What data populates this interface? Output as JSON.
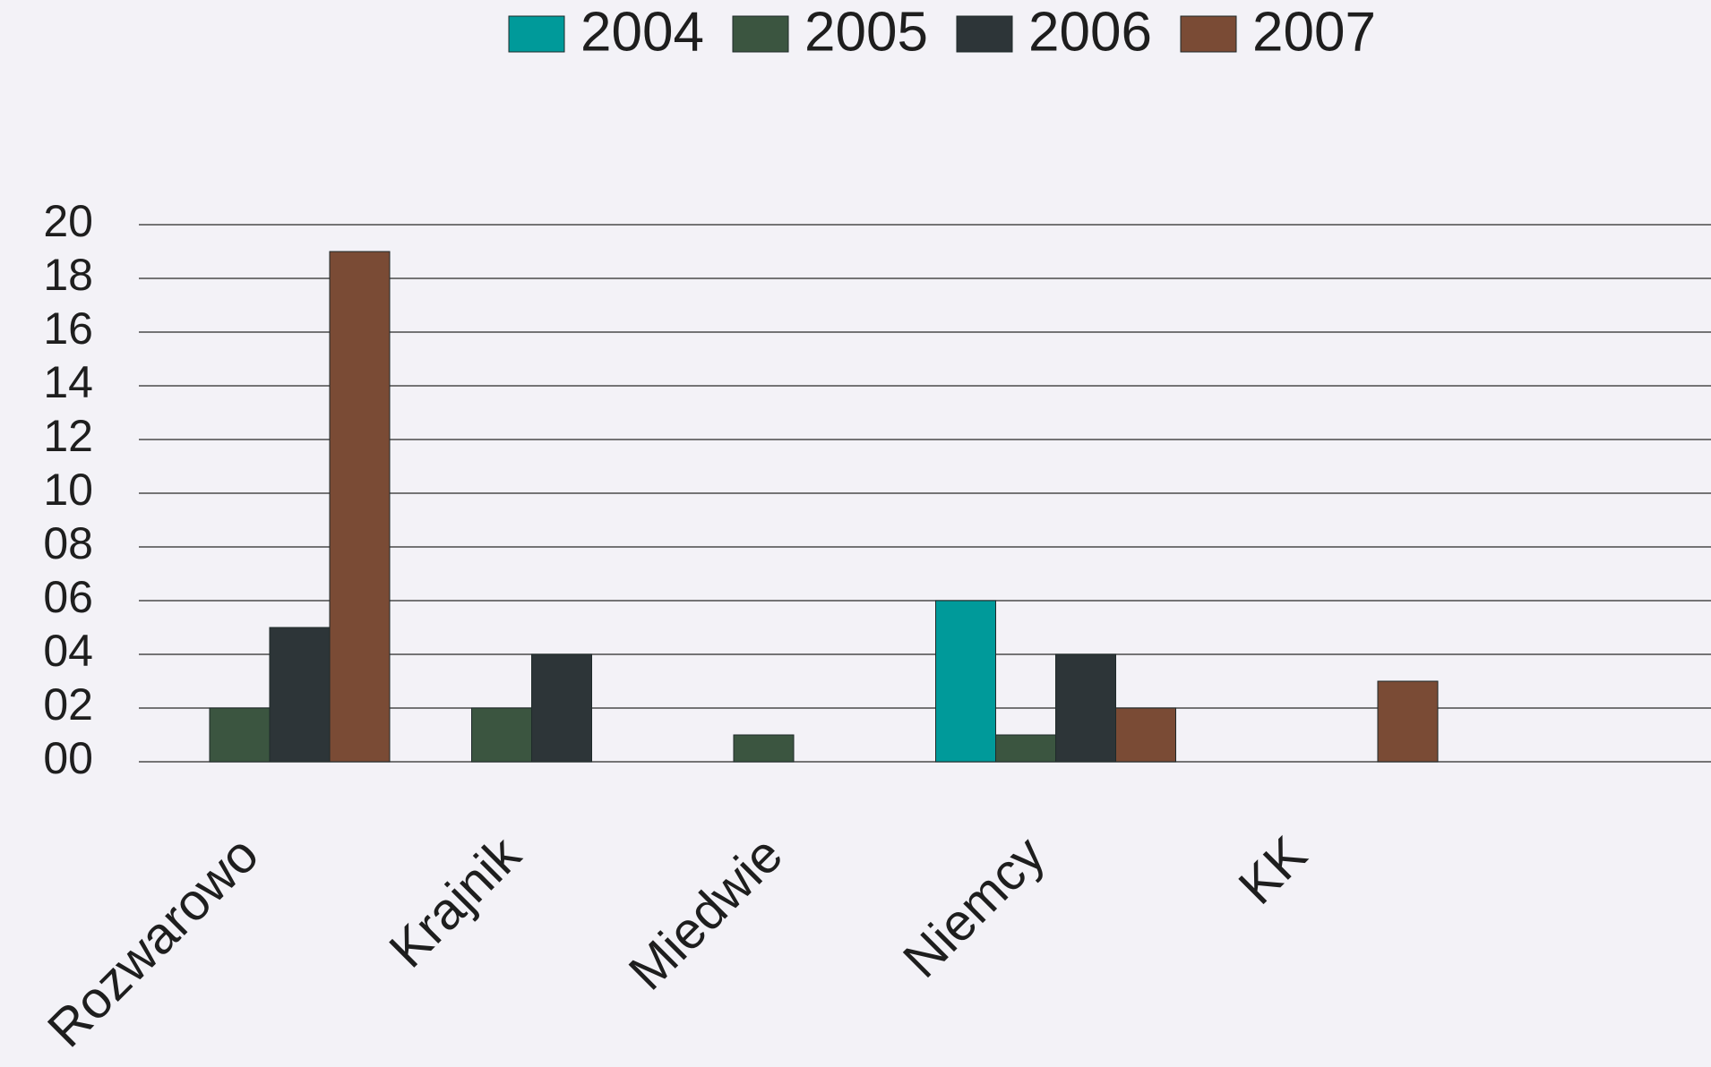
{
  "chart_data": {
    "type": "bar",
    "categories": [
      "Rozwarowo",
      "Krajnik",
      "Miedwie",
      "Niemcy",
      "KK",
      null
    ],
    "series": [
      {
        "name": "2004",
        "color": "#009a9a",
        "values": [
          0,
          0,
          0,
          6,
          0,
          null
        ]
      },
      {
        "name": "2005",
        "color": "#3b5540",
        "values": [
          2,
          2,
          1,
          1,
          0,
          null
        ]
      },
      {
        "name": "2006",
        "color": "#2d3538",
        "values": [
          5,
          4,
          0,
          4,
          0,
          null
        ]
      },
      {
        "name": "2007",
        "color": "#7a4b35",
        "values": [
          19,
          0,
          0,
          2,
          3,
          null
        ]
      }
    ],
    "ylim": [
      0,
      20
    ],
    "yticks": [
      {
        "value": 0,
        "label": "00"
      },
      {
        "value": 2,
        "label": "02"
      },
      {
        "value": 4,
        "label": "04"
      },
      {
        "value": 6,
        "label": "06"
      },
      {
        "value": 8,
        "label": "08"
      },
      10,
      12,
      14,
      16,
      18,
      20
    ],
    "grid": true,
    "legend": "top"
  }
}
